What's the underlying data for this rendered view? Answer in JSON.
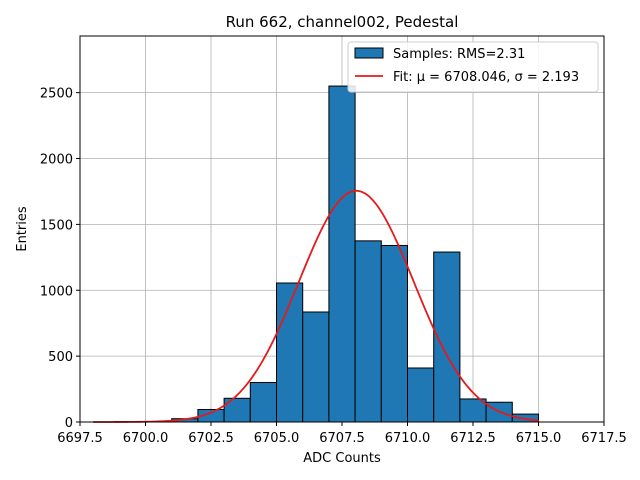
{
  "chart_data": {
    "type": "bar",
    "title": "Run 662, channel002, Pedestal",
    "xlabel": "ADC Counts",
    "ylabel": "Entries",
    "xlim": [
      6697.5,
      6717.5
    ],
    "ylim": [
      0,
      2930
    ],
    "xticks": [
      6697.5,
      6700.0,
      6702.5,
      6705.0,
      6707.5,
      6710.0,
      6712.5,
      6715.0,
      6717.5
    ],
    "xtick_labels": [
      "6697.5",
      "6700.0",
      "6702.5",
      "6705.0",
      "6707.5",
      "6710.0",
      "6712.5",
      "6715.0",
      "6717.5"
    ],
    "yticks": [
      0,
      500,
      1000,
      1500,
      2000,
      2500
    ],
    "ytick_labels": [
      "0",
      "500",
      "1000",
      "1500",
      "2000",
      "2500"
    ],
    "grid": true,
    "legend_position": "top-right",
    "bins": [
      {
        "x0": 6701.0,
        "x1": 6702.0,
        "value": 25
      },
      {
        "x0": 6702.0,
        "x1": 6703.0,
        "value": 95
      },
      {
        "x0": 6703.0,
        "x1": 6704.0,
        "value": 180
      },
      {
        "x0": 6704.0,
        "x1": 6705.0,
        "value": 300
      },
      {
        "x0": 6705.0,
        "x1": 6706.0,
        "value": 1055
      },
      {
        "x0": 6706.0,
        "x1": 6707.0,
        "value": 835
      },
      {
        "x0": 6707.0,
        "x1": 6708.0,
        "value": 2550
      },
      {
        "x0": 6708.0,
        "x1": 6709.0,
        "value": 1375
      },
      {
        "x0": 6709.0,
        "x1": 6710.0,
        "value": 1340
      },
      {
        "x0": 6710.0,
        "x1": 6711.0,
        "value": 410
      },
      {
        "x0": 6711.0,
        "x1": 6712.0,
        "value": 1290
      },
      {
        "x0": 6712.0,
        "x1": 6713.0,
        "value": 175
      },
      {
        "x0": 6713.0,
        "x1": 6714.0,
        "value": 150
      },
      {
        "x0": 6714.0,
        "x1": 6715.0,
        "value": 60
      }
    ],
    "series": [
      {
        "name": "Samples: RMS=2.31",
        "kind": "histogram",
        "color": "#1f77b4"
      },
      {
        "name": "Fit: μ = 6708.046, σ = 2.193",
        "kind": "gaussian",
        "color": "#e41a1c",
        "mu": 6708.046,
        "sigma": 2.193,
        "amplitude": 1755,
        "x_range": [
          6698.0,
          6715.0
        ]
      }
    ]
  }
}
